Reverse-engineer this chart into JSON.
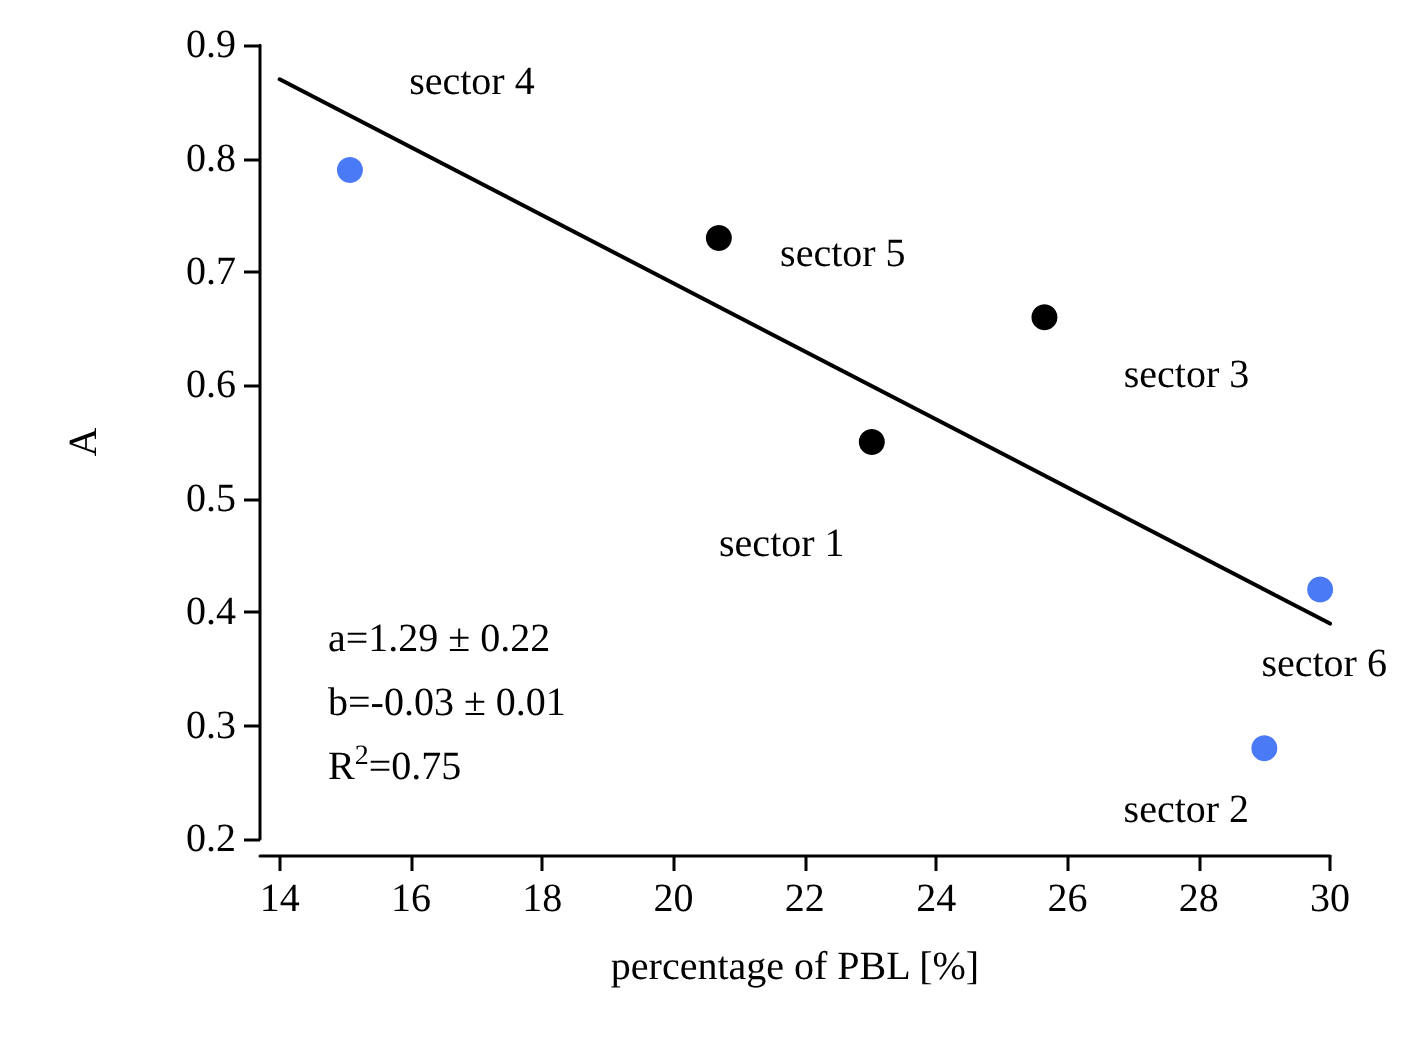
{
  "chart_data": {
    "type": "scatter",
    "xlabel": "percentage of PBL [%]",
    "ylabel": "A",
    "xlim": [
      13.7,
      30
    ],
    "xticks": [
      14,
      16,
      18,
      20,
      22,
      24,
      26,
      28,
      30
    ],
    "ylim": [
      0.2,
      0.9
    ],
    "yticks": [
      0.2,
      0.3,
      0.4,
      0.5,
      0.6,
      0.7,
      0.8,
      0.9
    ],
    "grid": false,
    "marker": "circle",
    "series": [
      {
        "color": "#000000",
        "x": [
          20.69,
          23.02,
          25.65
        ],
        "values": [
          0.73,
          0.55,
          0.66
        ]
      },
      {
        "color": "#4a7af5",
        "x": [
          15.07,
          29.85,
          29.0
        ],
        "values": [
          0.79,
          0.42,
          0.28
        ]
      },
      {
        "type": "line",
        "color": "#000000",
        "marker": "none",
        "line_style": "solid",
        "x": [
          14,
          30
        ],
        "values": [
          0.87,
          0.39
        ]
      }
    ],
    "annotations": [
      {
        "text": "sector 4",
        "x": 15.07,
        "y": 0.79
      },
      {
        "text": "sector 5",
        "x": 20.69,
        "y": 0.73
      },
      {
        "text": "sector 3",
        "x": 25.65,
        "y": 0.66
      },
      {
        "text": "sector 1",
        "x": 23.02,
        "y": 0.55
      },
      {
        "text": "sector 6",
        "x": 29.85,
        "y": 0.42
      },
      {
        "text": "sector 2",
        "x": 29.0,
        "y": 0.28
      },
      "a=1.29 ± 0.22",
      "b=-0.03 ± 0.01",
      "R$^{2}$=0.75"
    ]
  }
}
